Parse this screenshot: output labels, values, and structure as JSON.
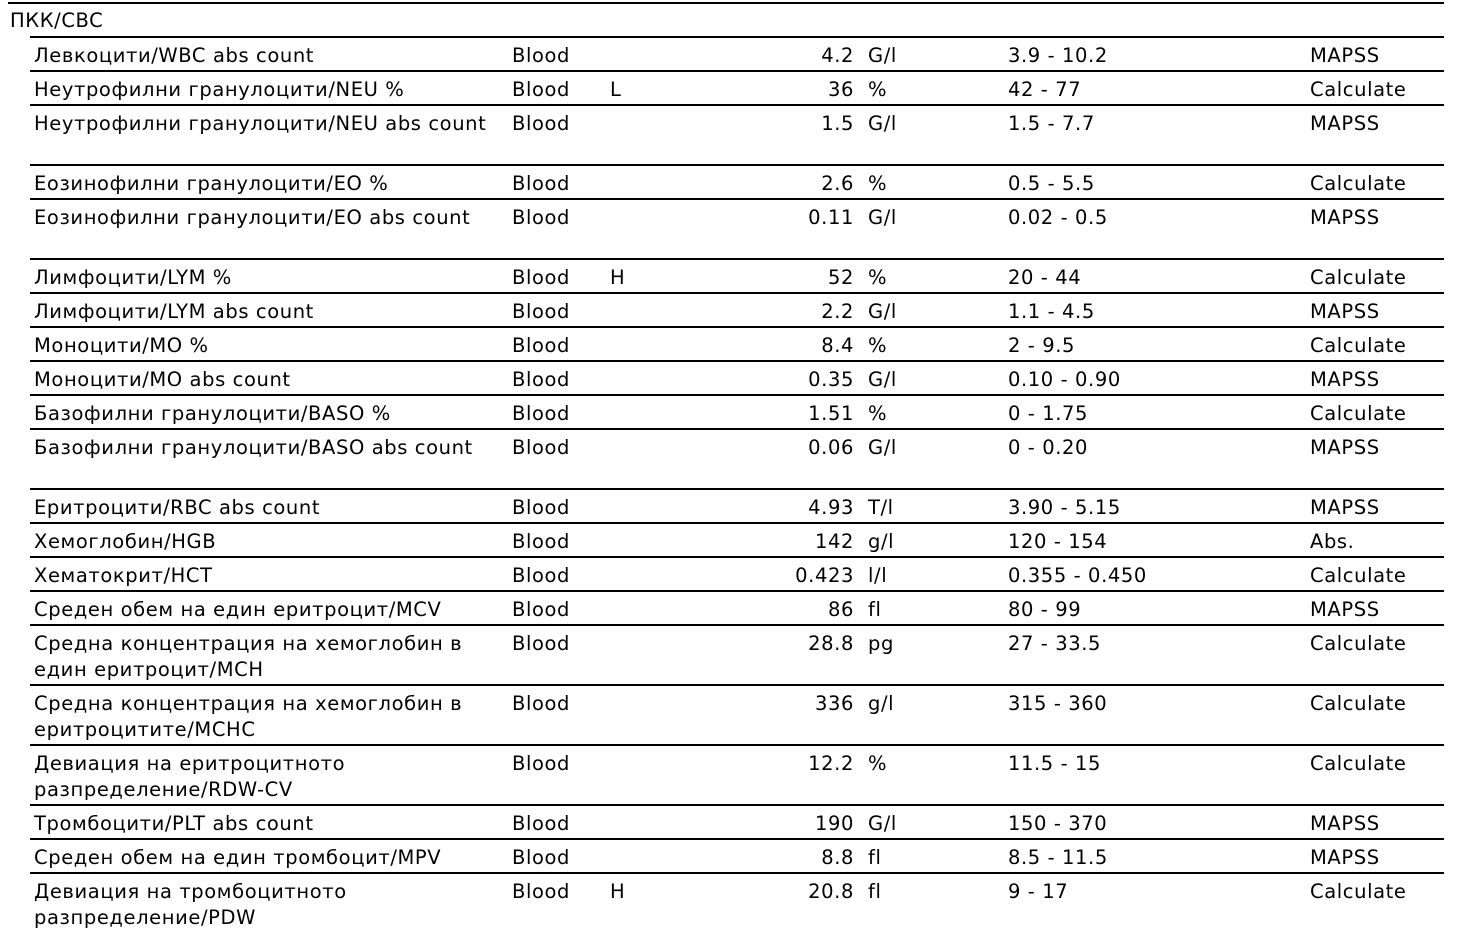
{
  "section_title": "ПКК/CBC",
  "rows": [
    {
      "name": "Левкоцити/WBC abs count",
      "sample": "Blood",
      "flag": "",
      "value": "4.2",
      "unit": "G/l",
      "range": "3.9 - 10.2",
      "method": "MAPSS"
    },
    {
      "name": "Неутрофилни гранулоцити/NEU %",
      "sample": "Blood",
      "flag": "L",
      "value": "36",
      "unit": "%",
      "range": "42 - 77",
      "method": "Calculate"
    },
    {
      "name": "Неутрофилни гранулоцити/NEU abs count",
      "sample": "Blood",
      "flag": "",
      "value": "1.5",
      "unit": "G/l",
      "range": "1.5 - 7.7",
      "method": "MAPSS"
    },
    {
      "name": "Еозинофилни гранулоцити/EO %",
      "sample": "Blood",
      "flag": "",
      "value": "2.6",
      "unit": "%",
      "range": "0.5 - 5.5",
      "method": "Calculate"
    },
    {
      "name": "Еозинофилни гранулоцити/EO abs count",
      "sample": "Blood",
      "flag": "",
      "value": "0.11",
      "unit": "G/l",
      "range": "0.02 - 0.5",
      "method": "MAPSS"
    },
    {
      "name": "Лимфоцити/LYM %",
      "sample": "Blood",
      "flag": "H",
      "value": "52",
      "unit": "%",
      "range": "20 - 44",
      "method": "Calculate"
    },
    {
      "name": "Лимфоцити/LYM abs count",
      "sample": "Blood",
      "flag": "",
      "value": "2.2",
      "unit": "G/l",
      "range": "1.1 - 4.5",
      "method": "MAPSS"
    },
    {
      "name": "Моноцити/MO %",
      "sample": "Blood",
      "flag": "",
      "value": "8.4",
      "unit": "%",
      "range": "2 - 9.5",
      "method": "Calculate"
    },
    {
      "name": "Моноцити/MO abs count",
      "sample": "Blood",
      "flag": "",
      "value": "0.35",
      "unit": "G/l",
      "range": "0.10 - 0.90",
      "method": "MAPSS"
    },
    {
      "name": "Базофилни гранулоцити/BASO %",
      "sample": "Blood",
      "flag": "",
      "value": "1.51",
      "unit": "%",
      "range": "0 - 1.75",
      "method": "Calculate"
    },
    {
      "name": "Базофилни гранулоцити/BASO abs count",
      "sample": "Blood",
      "flag": "",
      "value": "0.06",
      "unit": "G/l",
      "range": "0 - 0.20",
      "method": "MAPSS"
    },
    {
      "name": "Еритроцити/RBC abs count",
      "sample": "Blood",
      "flag": "",
      "value": "4.93",
      "unit": "T/l",
      "range": "3.90 - 5.15",
      "method": "MAPSS"
    },
    {
      "name": "Хемоглобин/HGB",
      "sample": "Blood",
      "flag": "",
      "value": "142",
      "unit": "g/l",
      "range": "120 - 154",
      "method": "Abs."
    },
    {
      "name": "Хематокрит/HCT",
      "sample": "Blood",
      "flag": "",
      "value": "0.423",
      "unit": "l/l",
      "range": "0.355 - 0.450",
      "method": "Calculate"
    },
    {
      "name": "Среден обем на един еритроцит/MCV",
      "sample": "Blood",
      "flag": "",
      "value": "86",
      "unit": "fl",
      "range": "80 - 99",
      "method": "MAPSS"
    },
    {
      "name": "Средна концентрация на хемоглобин в един еритроцит/MCH",
      "sample": "Blood",
      "flag": "",
      "value": "28.8",
      "unit": "pg",
      "range": "27 - 33.5",
      "method": "Calculate"
    },
    {
      "name": "Средна концентрация на хемоглобин в еритроцитите/MCHC",
      "sample": "Blood",
      "flag": "",
      "value": "336",
      "unit": "g/l",
      "range": "315 - 360",
      "method": "Calculate"
    },
    {
      "name": "Девиация на еритроцитното разпределение/RDW-CV",
      "sample": "Blood",
      "flag": "",
      "value": "12.2",
      "unit": "%",
      "range": "11.5 - 15",
      "method": "Calculate"
    },
    {
      "name": "Тромбоцити/PLT abs count",
      "sample": "Blood",
      "flag": "",
      "value": "190",
      "unit": "G/l",
      "range": "150 - 370",
      "method": "MAPSS"
    },
    {
      "name": "Среден обем на един тромбоцит/MPV",
      "sample": "Blood",
      "flag": "",
      "value": "8.8",
      "unit": "fl",
      "range": "8.5 - 11.5",
      "method": "MAPSS"
    },
    {
      "name": "Девиация на тромбоцитното разпределение/PDW",
      "sample": "Blood",
      "flag": "H",
      "value": "20.8",
      "unit": "fl",
      "range": "9 - 17",
      "method": "Calculate"
    }
  ]
}
